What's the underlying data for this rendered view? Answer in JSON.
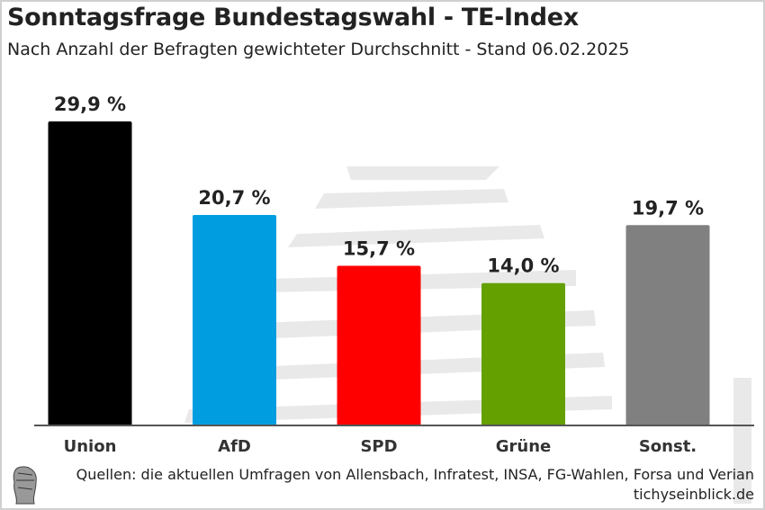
{
  "title": "Sonntagsfrage Bundestagswahl - TE-Index",
  "subtitle": "Nach Anzahl der Befragten gewichteter Durchschnitt - Stand 06.02.2025",
  "source": "Quellen: die aktuellen Umfragen von Allensbach, Infratest, INSA, FG-Wahlen, Forsa und Verian",
  "site": "tichyseinblick.de",
  "chart_data": {
    "type": "bar",
    "categories": [
      "Union",
      "AfD",
      "SPD",
      "Grüne",
      "Sonst."
    ],
    "values": [
      29.9,
      20.7,
      15.7,
      14.0,
      19.7
    ],
    "data_labels": [
      "29,9 %",
      "20,7 %",
      "15,7 %",
      "14,0 %",
      "19,7 %"
    ],
    "colors": [
      "#000000",
      "#009ee0",
      "#ff0000",
      "#64a000",
      "#808080"
    ],
    "ylim": [
      0,
      30
    ],
    "grid": false,
    "legend": "none"
  }
}
